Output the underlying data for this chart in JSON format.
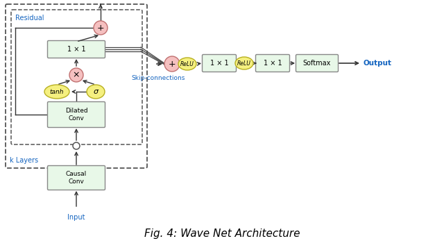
{
  "title": "Fig. 4: Wave Net Architecture",
  "title_fontsize": 11,
  "background_color": "#ffffff",
  "green_box_color": "#e8f8e8",
  "green_box_edge": "#888888",
  "yellow_color": "#f5f080",
  "yellow_edge": "#b8b020",
  "pink_color": "#f5c0c0",
  "pink_edge": "#c07070",
  "blue_text": "#1565c0",
  "arrow_color": "#333333",
  "label_residual": "Residual",
  "label_klayers": "k Layers",
  "label_skip": "Skip-connections",
  "label_input": "Input",
  "label_output": "Output",
  "label_1x1": "1 × 1",
  "label_tanh": "tanh",
  "label_sigma": "σ",
  "label_dilated": "Dilated\nConv",
  "label_causal": "Causal\nConv",
  "label_softmax": "Softmax",
  "label_relu": "ReLU"
}
